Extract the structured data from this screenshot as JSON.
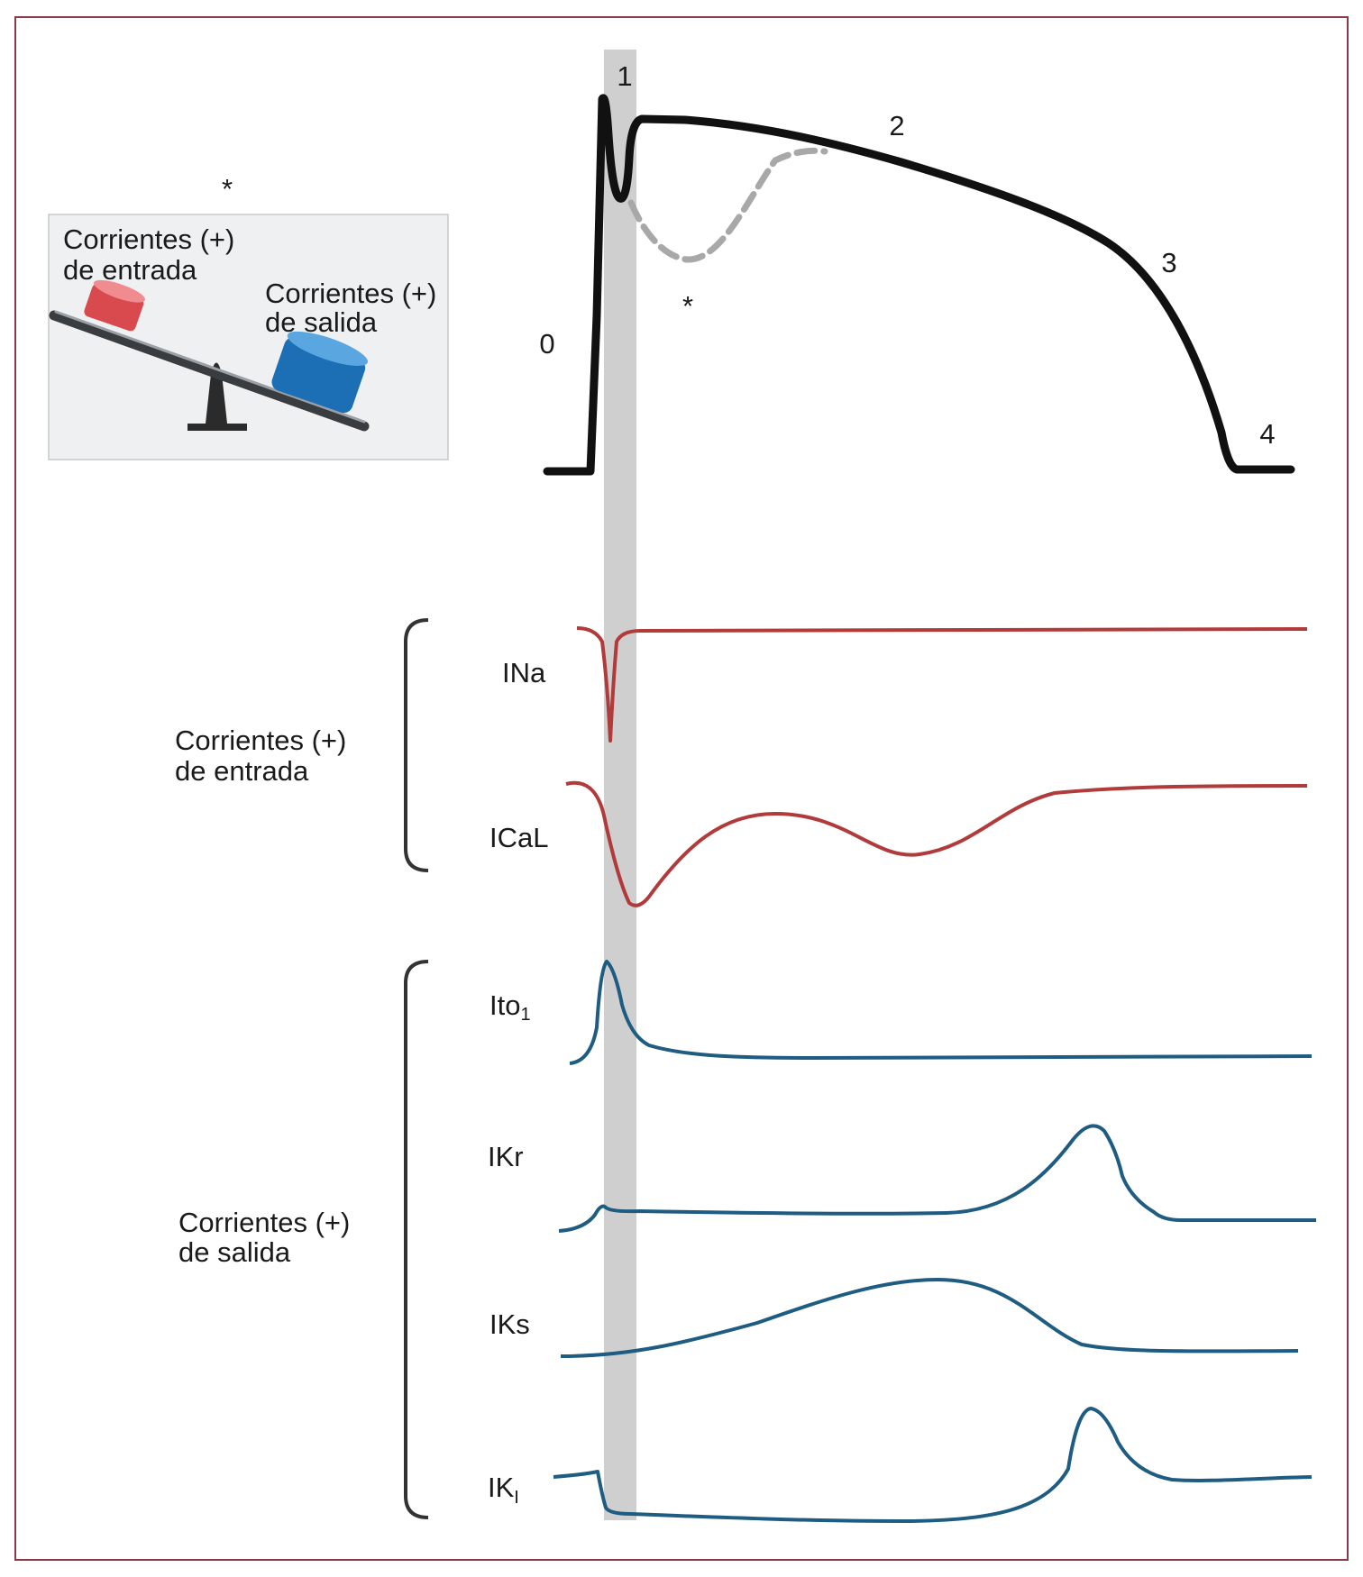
{
  "inset": {
    "asterisk": "*",
    "inward_label_line1": "Corrientes (+)",
    "inward_label_line2": "de entrada",
    "outward_label_line1": "Corrientes (+)",
    "outward_label_line2": "de salida"
  },
  "action_potential": {
    "phase_0": "0",
    "phase_1": "1",
    "phase_2": "2",
    "phase_3": "3",
    "phase_4": "4",
    "asterisk": "*"
  },
  "groups": {
    "inward_line1": "Corrientes (+)",
    "inward_line2": "de entrada",
    "outward_line1": "Corrientes (+)",
    "outward_line2": "de salida"
  },
  "currents": {
    "ina": "INa",
    "ical": "ICaL",
    "ito_base": "Ito",
    "ito_sub": "1",
    "ikr": "IKr",
    "iks": "IKs",
    "ik1_base": "IK",
    "ik1_sub": "I"
  },
  "colors": {
    "frame": "#8b3a4a",
    "action_potential": "#111111",
    "inward": "#b13a3a",
    "outward": "#1f5c82",
    "highlight_band": "#cfcfcf",
    "dashed": "#a8a8a8"
  }
}
